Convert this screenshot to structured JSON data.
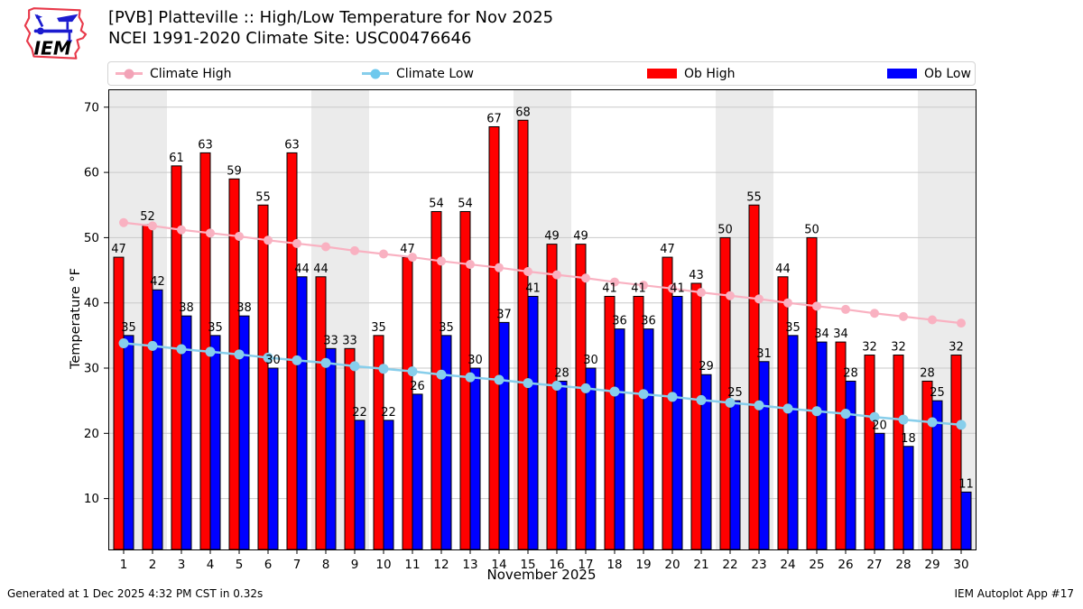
{
  "header": {
    "logo_text": "IEM",
    "title_line1": "[PVB] Platteville :: High/Low Temperature for Nov 2025",
    "title_line2": "NCEI 1991-2020 Climate Site: USC00476646"
  },
  "legend": {
    "items": [
      {
        "label": "Climate High",
        "type": "line",
        "color": "#f9b1c1"
      },
      {
        "label": "Climate Low",
        "type": "line",
        "color": "#87ceeb"
      },
      {
        "label": "Ob High",
        "type": "swatch",
        "color": "#ff0000"
      },
      {
        "label": "Ob Low",
        "type": "swatch",
        "color": "#0000ff"
      }
    ]
  },
  "chart_data": {
    "type": "bar",
    "title": "[PVB] Platteville :: High/Low Temperature for Nov 2025",
    "subtitle": "NCEI 1991-2020 Climate Site: USC00476646",
    "xlabel": "November 2025",
    "ylabel": "Temperature °F",
    "x": [
      1,
      2,
      3,
      4,
      5,
      6,
      7,
      8,
      9,
      10,
      11,
      12,
      13,
      14,
      15,
      16,
      17,
      18,
      19,
      20,
      21,
      22,
      23,
      24,
      25,
      26,
      27,
      28,
      29,
      30
    ],
    "series": [
      {
        "name": "Ob High",
        "type": "bar",
        "color": "#ff0000",
        "values": [
          47,
          52,
          61,
          63,
          59,
          55,
          63,
          44,
          33,
          35,
          47,
          54,
          54,
          67,
          68,
          49,
          49,
          41,
          41,
          47,
          43,
          50,
          55,
          44,
          50,
          34,
          32,
          32,
          28,
          32
        ]
      },
      {
        "name": "Ob Low",
        "type": "bar",
        "color": "#0000ff",
        "values": [
          35,
          42,
          38,
          35,
          38,
          30,
          44,
          33,
          22,
          22,
          26,
          35,
          30,
          37,
          41,
          28,
          30,
          36,
          36,
          41,
          29,
          25,
          31,
          35,
          34,
          28,
          20,
          18,
          25,
          11
        ]
      },
      {
        "name": "Climate High",
        "type": "line",
        "color": "#f9b1c1",
        "values": [
          52.3,
          51.8,
          51.2,
          50.7,
          50.2,
          49.6,
          49.1,
          48.6,
          48.0,
          47.5,
          47.0,
          46.4,
          45.9,
          45.4,
          44.8,
          44.3,
          43.8,
          43.2,
          42.7,
          42.2,
          41.6,
          41.1,
          40.6,
          40.0,
          39.5,
          39.0,
          38.4,
          37.9,
          37.4,
          36.9
        ]
      },
      {
        "name": "Climate Low",
        "type": "line",
        "color": "#87ceeb",
        "values": [
          33.8,
          33.4,
          32.9,
          32.5,
          32.1,
          31.6,
          31.2,
          30.8,
          30.3,
          29.9,
          29.5,
          29.0,
          28.6,
          28.2,
          27.7,
          27.3,
          26.9,
          26.4,
          26.0,
          25.6,
          25.1,
          24.7,
          24.3,
          23.8,
          23.4,
          23.0,
          22.5,
          22.1,
          21.7,
          21.3
        ]
      }
    ],
    "ylim": [
      2.2,
      72.6
    ],
    "yticks": [
      10,
      20,
      30,
      40,
      50,
      60,
      70
    ],
    "grid": "horizontal",
    "legend_position": "top",
    "weekend_bands": [
      [
        0.5,
        2.5
      ],
      [
        7.5,
        9.5
      ],
      [
        14.5,
        16.5
      ],
      [
        21.5,
        23.5
      ],
      [
        28.5,
        30.5
      ]
    ],
    "band_color": "#ebebeb",
    "gridline_color": "#c9c9c9"
  },
  "footer": {
    "left": "Generated at 1 Dec 2025 4:32 PM CST in 0.32s",
    "right": "IEM Autoplot App #17"
  }
}
